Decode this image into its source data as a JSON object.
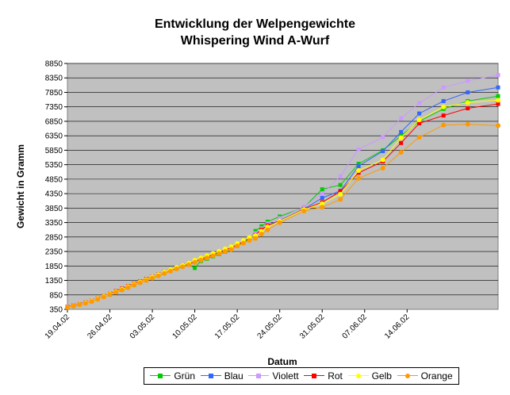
{
  "chart_data": {
    "type": "line",
    "title": "Entwicklung der Welpengewichte",
    "subtitle": "Whispering Wind A-Wurf",
    "xlabel": "Datum",
    "ylabel": "Gewicht in Gramm",
    "ylim": [
      350,
      8850
    ],
    "yticks": [
      350,
      850,
      1350,
      1850,
      2350,
      2850,
      3350,
      3850,
      4350,
      4850,
      5350,
      5850,
      6350,
      6850,
      7350,
      7850,
      8350,
      8850
    ],
    "xlim": [
      "19.04.02",
      "29.06.02"
    ],
    "xticks": [
      "19.04.02",
      "26.04.02",
      "03.05.02",
      "10.05.02",
      "17.05.02",
      "24.05.02",
      "31.05.02",
      "07.06.02",
      "14.06.02"
    ],
    "grid": true,
    "legend_position": "bottom",
    "x": [
      "19.04.02",
      "20.04.02",
      "21.04.02",
      "22.04.02",
      "23.04.02",
      "24.04.02",
      "25.04.02",
      "26.04.02",
      "27.04.02",
      "28.04.02",
      "29.04.02",
      "30.04.02",
      "01.05.02",
      "02.05.02",
      "03.05.02",
      "04.05.02",
      "05.05.02",
      "06.05.02",
      "07.05.02",
      "08.05.02",
      "09.05.02",
      "10.05.02",
      "11.05.02",
      "12.05.02",
      "13.05.02",
      "14.05.02",
      "15.05.02",
      "16.05.02",
      "17.05.02",
      "18.05.02",
      "19.05.02",
      "20.05.02",
      "21.05.02",
      "22.05.02",
      "24.05.02",
      "28.05.02",
      "31.05.02",
      "03.06.02",
      "06.06.02",
      "10.06.02",
      "13.06.02",
      "16.06.02",
      "20.06.02",
      "24.06.02",
      "29.06.02"
    ],
    "series": [
      {
        "name": "Grün",
        "color": "#00cc00",
        "marker": "square",
        "values": [
          430,
          470,
          520,
          580,
          630,
          710,
          790,
          860,
          940,
          1030,
          1110,
          1200,
          1280,
          1370,
          1450,
          1530,
          1620,
          1700,
          1760,
          1830,
          1900,
          1780,
          2020,
          2100,
          2180,
          2260,
          2340,
          2420,
          2540,
          2660,
          2780,
          3060,
          3220,
          3380,
          3560,
          3880,
          4500,
          4650,
          5380,
          5850,
          6350,
          6850,
          7280,
          7550,
          7720
        ]
      },
      {
        "name": "Blau",
        "color": "#3366ff",
        "marker": "square",
        "values": [
          440,
          480,
          530,
          590,
          640,
          720,
          800,
          880,
          960,
          1050,
          1130,
          1220,
          1300,
          1390,
          1470,
          1550,
          1640,
          1720,
          1800,
          1870,
          1950,
          2030,
          2110,
          2190,
          2260,
          2340,
          2420,
          2500,
          2600,
          2710,
          2820,
          2950,
          3100,
          3260,
          3420,
          3820,
          4200,
          4450,
          5300,
          5820,
          6480,
          7120,
          7550,
          7850,
          8020
        ]
      },
      {
        "name": "Violett",
        "color": "#cc99ff",
        "marker": "square",
        "values": [
          445,
          490,
          540,
          600,
          650,
          730,
          810,
          890,
          970,
          1060,
          1140,
          1230,
          1310,
          1400,
          1480,
          1560,
          1650,
          1730,
          1810,
          1880,
          1960,
          2040,
          2120,
          2200,
          2280,
          2360,
          2440,
          2520,
          2620,
          2730,
          2850,
          2980,
          3150,
          3320,
          3500,
          3900,
          4350,
          4950,
          5880,
          6300,
          6950,
          7480,
          8020,
          8250,
          8450
        ]
      },
      {
        "name": "Rot",
        "color": "#ff0000",
        "marker": "square",
        "values": [
          435,
          480,
          530,
          590,
          650,
          730,
          810,
          890,
          980,
          1070,
          1150,
          1240,
          1320,
          1400,
          1480,
          1560,
          1640,
          1710,
          1780,
          1850,
          1920,
          2000,
          2080,
          2160,
          2240,
          2320,
          2400,
          2480,
          2580,
          2700,
          2800,
          2920,
          3100,
          3250,
          3400,
          3820,
          4050,
          4430,
          5070,
          5460,
          6100,
          6780,
          7050,
          7300,
          7450
        ]
      },
      {
        "name": "Gelb",
        "color": "#ffff00",
        "marker": "circle",
        "values": [
          425,
          470,
          520,
          580,
          640,
          720,
          800,
          880,
          960,
          1050,
          1130,
          1220,
          1300,
          1380,
          1470,
          1550,
          1640,
          1720,
          1800,
          1870,
          1950,
          2050,
          2130,
          2200,
          2280,
          2360,
          2440,
          2520,
          2630,
          2730,
          2840,
          2900,
          3050,
          3200,
          3400,
          3800,
          4000,
          4330,
          5150,
          5520,
          6280,
          6900,
          7350,
          7500,
          7580
        ]
      },
      {
        "name": "Orange",
        "color": "#ff9900",
        "marker": "circle",
        "values": [
          420,
          460,
          510,
          560,
          620,
          700,
          780,
          860,
          940,
          1020,
          1100,
          1190,
          1270,
          1350,
          1430,
          1510,
          1590,
          1670,
          1750,
          1820,
          1890,
          1970,
          2050,
          2130,
          2200,
          2280,
          2350,
          2420,
          2540,
          2640,
          2730,
          2800,
          2950,
          3100,
          3350,
          3750,
          3880,
          4150,
          4880,
          5230,
          5780,
          6300,
          6720,
          6750,
          6700
        ]
      }
    ]
  }
}
